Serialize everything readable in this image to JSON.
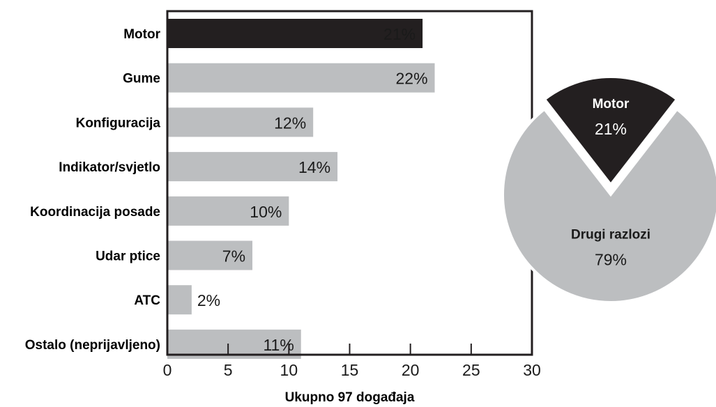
{
  "chart_data": [
    {
      "type": "bar",
      "orientation": "horizontal",
      "categories": [
        "Motor",
        "Gume",
        "Konfiguracija",
        "Indikator/svjetlo",
        "Koordinacija posade",
        "Udar ptice",
        "ATC",
        "Ostalo (neprijavljeno)"
      ],
      "values": [
        21,
        22,
        12,
        14,
        10,
        7,
        2,
        11
      ],
      "value_labels": [
        "21%",
        "22%",
        "12%",
        "14%",
        "10%",
        "7%",
        "2%",
        "11%"
      ],
      "xlabel": "Ukupno 97 događaja",
      "xlim": [
        0,
        30
      ],
      "xticks": [
        0,
        5,
        10,
        15,
        20,
        25,
        30
      ],
      "grid": false,
      "highlight_color": "#231f20",
      "bar_color": "#bcbec0"
    },
    {
      "type": "pie",
      "slices": [
        {
          "label": "Motor",
          "value": 21,
          "value_label": "21%",
          "color": "#231f20",
          "text_color": "#ffffff",
          "exploded": true
        },
        {
          "label": "Drugi razlozi",
          "value": 79,
          "value_label": "79%",
          "color": "#bcbec0",
          "text_color": "#1a1a1a",
          "exploded": false
        }
      ]
    }
  ]
}
